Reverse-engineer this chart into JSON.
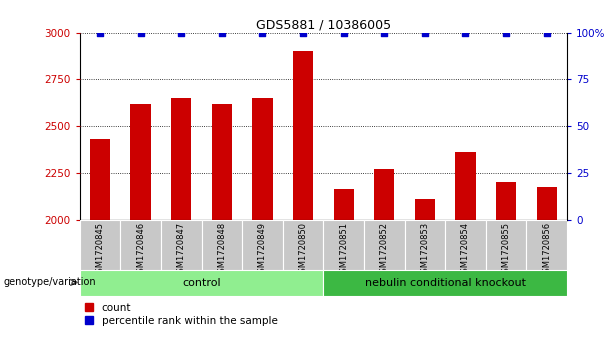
{
  "title": "GDS5881 / 10386005",
  "samples": [
    "GSM1720845",
    "GSM1720846",
    "GSM1720847",
    "GSM1720848",
    "GSM1720849",
    "GSM1720850",
    "GSM1720851",
    "GSM1720852",
    "GSM1720853",
    "GSM1720854",
    "GSM1720855",
    "GSM1720856"
  ],
  "counts": [
    2430,
    2620,
    2650,
    2620,
    2650,
    2900,
    2165,
    2270,
    2110,
    2360,
    2200,
    2175
  ],
  "percentile_rank": [
    100,
    100,
    100,
    100,
    100,
    100,
    100,
    100,
    100,
    100,
    100,
    100
  ],
  "ylim_left": [
    2000,
    3000
  ],
  "ylim_right": [
    0,
    100
  ],
  "yticks_left": [
    2000,
    2250,
    2500,
    2750,
    3000
  ],
  "yticks_right": [
    0,
    25,
    50,
    75,
    100
  ],
  "bar_color": "#cc0000",
  "dot_color": "#0000cc",
  "control_group_count": 6,
  "knockout_group_count": 6,
  "control_label": "control",
  "knockout_label": "nebulin conditional knockout",
  "group_label": "genotype/variation",
  "legend_count_label": "count",
  "legend_pct_label": "percentile rank within the sample",
  "control_bg": "#90ee90",
  "knockout_bg": "#3cb843",
  "xticklabels_bg": "#c8c8c8",
  "bar_width": 0.5
}
